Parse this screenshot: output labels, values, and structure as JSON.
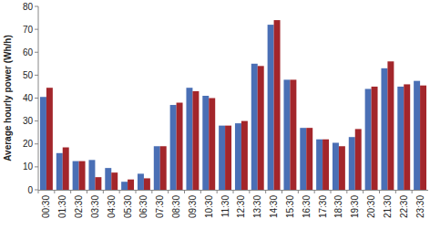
{
  "chart_data": {
    "type": "bar",
    "y_label": "Average hourly power (Wh/h)",
    "categories": [
      "00:30",
      "01:30",
      "02:30",
      "03:30",
      "04:30",
      "05:30",
      "06:30",
      "07:30",
      "08:30",
      "09:30",
      "10:30",
      "11:30",
      "12:30",
      "13:30",
      "14:30",
      "15:30",
      "16:30",
      "17:30",
      "18:30",
      "19:30",
      "20:30",
      "21:30",
      "22:30",
      "23:30"
    ],
    "series": [
      {
        "color": "#4a6fb5",
        "values": [
          40.5,
          16,
          12.5,
          13,
          9.5,
          3.5,
          7,
          19,
          37,
          44.5,
          41,
          28,
          29,
          55,
          72,
          48,
          27,
          22,
          20.5,
          23,
          44,
          53,
          45,
          47.5
        ]
      },
      {
        "color": "#a3262b",
        "values": [
          44.5,
          18.5,
          12.5,
          5.5,
          7.5,
          4.5,
          5,
          19,
          38,
          43,
          40,
          28,
          30,
          54,
          74,
          48,
          27,
          22,
          19,
          26.5,
          45,
          56,
          46,
          45.5
        ]
      }
    ],
    "ylim": [
      0,
      80
    ],
    "yticks": [
      0,
      10,
      20,
      30,
      40,
      50,
      60,
      70,
      80
    ],
    "grid": false
  }
}
